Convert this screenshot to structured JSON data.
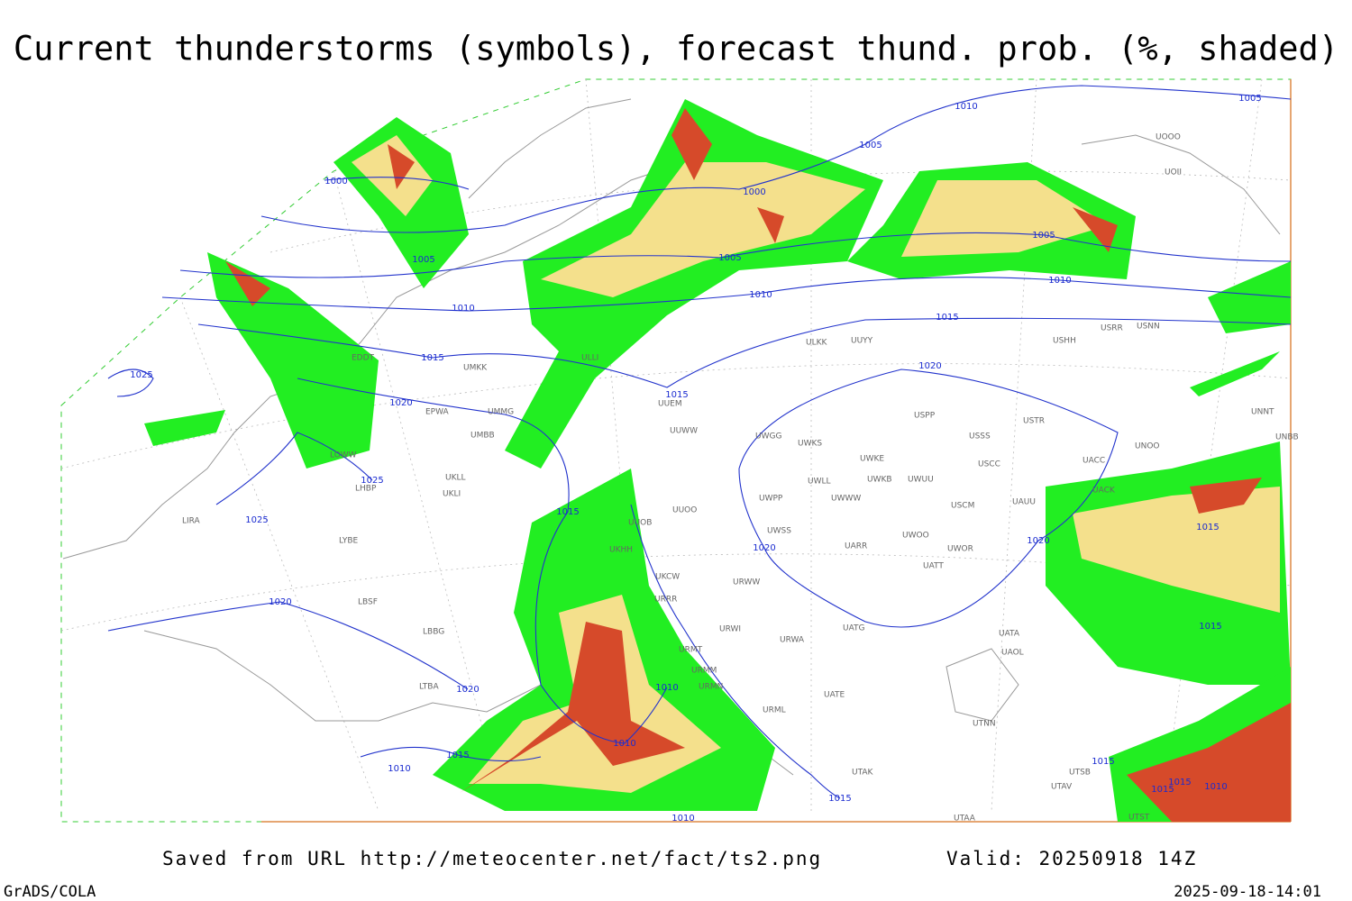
{
  "header": {
    "title": "Current thunderstorms (symbols), forecast thund. prob. (%, shaded)"
  },
  "footer": {
    "source": "Saved from URL http://meteocenter.net/fact/ts2.png",
    "valid": "Valid: 20250918 14Z",
    "software": "GrADS/COLA",
    "timestamp": "2025-09-18-14:01"
  },
  "isobar_labels": [
    "1000",
    "1005",
    "1010",
    "1015",
    "1020",
    "1025",
    "1025",
    "1025",
    "1020",
    "1020",
    "1015",
    "1010",
    "1010",
    "1010",
    "1010",
    "1015",
    "1020",
    "1020",
    "1015",
    "1010",
    "1005",
    "1000",
    "1005",
    "1010",
    "1005",
    "1005",
    "1010",
    "1015",
    "1015",
    "1020",
    "1015",
    "1015",
    "1015",
    "1015",
    "1010",
    "1015"
  ],
  "stations": [
    "EDDT",
    "EPWA",
    "UMMG",
    "UMBB",
    "UKLL",
    "UKLI",
    "LOWW",
    "LHBP",
    "LIRA",
    "LYBE",
    "LBSF",
    "LBBG",
    "LTBA",
    "ULLI",
    "UMKK",
    "UUWW",
    "UUOO",
    "UUOB",
    "UKHH",
    "UKCW",
    "URRR",
    "URWI",
    "URMT",
    "URMM",
    "URMN",
    "URML",
    "URWA",
    "UWGG",
    "UWKS",
    "UWKE",
    "UWKB",
    "UWLL",
    "UWUU",
    "UWWW",
    "UWPP",
    "UWSS",
    "URWW",
    "UWOO",
    "UARR",
    "UWOR",
    "UATT",
    "USCM",
    "UAUU",
    "USCC",
    "USSS",
    "USPP",
    "USTR",
    "UATG",
    "UATA",
    "UAOL",
    "UATE",
    "UTNN",
    "UTAK",
    "UTAA",
    "UTSB",
    "UTAV",
    "UTST",
    "UNNT",
    "UNBB",
    "UNOO",
    "UACC",
    "UACK",
    "USHH",
    "USRR",
    "USNN",
    "ULKK",
    "UUYY",
    "UOOO",
    "UOII",
    "UUEM"
  ]
}
